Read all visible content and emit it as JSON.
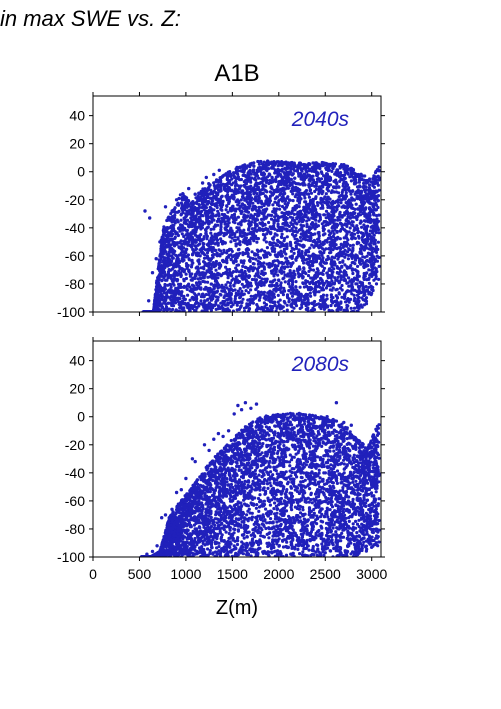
{
  "heading": "in max SWE vs. Z:",
  "scenario": "A1B",
  "colors": {
    "points": "#2020bb",
    "period_label": "#2222bb",
    "frame": "#000000"
  },
  "chart_data": [
    {
      "type": "scatter",
      "title": "A1B",
      "annotation": "2040s",
      "xlabel": "Z(m)",
      "ylabel": "",
      "xlim": [
        0,
        3100
      ],
      "ylim": [
        -100,
        54
      ],
      "xticks": [
        "0",
        "500",
        "1000",
        "1500",
        "2000",
        "2500",
        "3000"
      ],
      "yticks": [
        "40",
        "20",
        "0",
        "-20",
        "-40",
        "-60",
        "-80",
        "-100"
      ],
      "grid": false,
      "envelope": {
        "x": [
          540,
          650,
          750,
          850,
          950,
          1050,
          1150,
          1250,
          1350,
          1500,
          1700,
          1900,
          2100,
          2300,
          2500,
          2700,
          2900,
          3000,
          3080
        ],
        "upper": [
          -100,
          -100,
          -40,
          -28,
          -14,
          -22,
          -14,
          -8,
          -5,
          2,
          7,
          8,
          7,
          6,
          7,
          6,
          -2,
          -6,
          5
        ],
        "lower": [
          -100,
          -100,
          -100,
          -100,
          -100,
          -100,
          -100,
          -100,
          -100,
          -100,
          -100,
          -100,
          -100,
          -100,
          -100,
          -100,
          -100,
          -88,
          -78
        ]
      },
      "outliers": [
        [
          560,
          -28
        ],
        [
          610,
          -33
        ],
        [
          640,
          -72
        ],
        [
          600,
          -92
        ],
        [
          680,
          -62
        ],
        [
          720,
          -50
        ],
        [
          780,
          -25
        ],
        [
          810,
          -44
        ],
        [
          870,
          -32
        ],
        [
          900,
          -20
        ],
        [
          930,
          -40
        ],
        [
          990,
          -18
        ],
        [
          1030,
          -12
        ],
        [
          1100,
          -16
        ],
        [
          1180,
          -8
        ],
        [
          1220,
          -4
        ],
        [
          1300,
          -2
        ],
        [
          1360,
          1
        ],
        [
          2950,
          -16
        ],
        [
          3000,
          -14
        ],
        [
          3060,
          -8
        ]
      ]
    },
    {
      "type": "scatter",
      "title": "",
      "annotation": "2080s",
      "xlabel": "Z(m)",
      "ylabel": "",
      "xlim": [
        0,
        3100
      ],
      "ylim": [
        -100,
        54
      ],
      "xticks": [
        "0",
        "500",
        "1000",
        "1500",
        "2000",
        "2500",
        "3000"
      ],
      "yticks": [
        "40",
        "20",
        "0",
        "-20",
        "-40",
        "-60",
        "-80",
        "-100"
      ],
      "grid": false,
      "envelope": {
        "x": [
          520,
          620,
          720,
          820,
          920,
          1020,
          1120,
          1220,
          1320,
          1420,
          1520,
          1620,
          1720,
          1850,
          2000,
          2150,
          2300,
          2450,
          2600,
          2750,
          2850,
          2950,
          3080
        ],
        "upper": [
          -100,
          -100,
          -96,
          -72,
          -62,
          -54,
          -45,
          -36,
          -28,
          -22,
          -14,
          -8,
          -3,
          1,
          2,
          3,
          2,
          0,
          -2,
          -8,
          -16,
          -22,
          -4
        ],
        "lower": [
          -100,
          -100,
          -100,
          -100,
          -100,
          -100,
          -100,
          -100,
          -100,
          -100,
          -100,
          -100,
          -100,
          -100,
          -100,
          -100,
          -100,
          -100,
          -100,
          -100,
          -100,
          -96,
          -92
        ]
      },
      "outliers": [
        [
          580,
          -98
        ],
        [
          640,
          -96
        ],
        [
          690,
          -92
        ],
        [
          740,
          -72
        ],
        [
          780,
          -70
        ],
        [
          850,
          -66
        ],
        [
          900,
          -54
        ],
        [
          950,
          -52
        ],
        [
          1000,
          -44
        ],
        [
          1070,
          -30
        ],
        [
          1100,
          -32
        ],
        [
          1200,
          -20
        ],
        [
          1250,
          -24
        ],
        [
          1300,
          -16
        ],
        [
          1350,
          -12
        ],
        [
          1400,
          -14
        ],
        [
          1460,
          -10
        ],
        [
          1520,
          2
        ],
        [
          1560,
          8
        ],
        [
          1600,
          5
        ],
        [
          1640,
          10
        ],
        [
          1700,
          6
        ],
        [
          1760,
          9
        ],
        [
          2450,
          -1
        ],
        [
          2520,
          0
        ],
        [
          2620,
          10
        ],
        [
          2700,
          -4
        ],
        [
          2780,
          -6
        ],
        [
          2900,
          -30
        ],
        [
          2960,
          -28
        ],
        [
          3030,
          -34
        ],
        [
          3060,
          -26
        ]
      ]
    }
  ]
}
